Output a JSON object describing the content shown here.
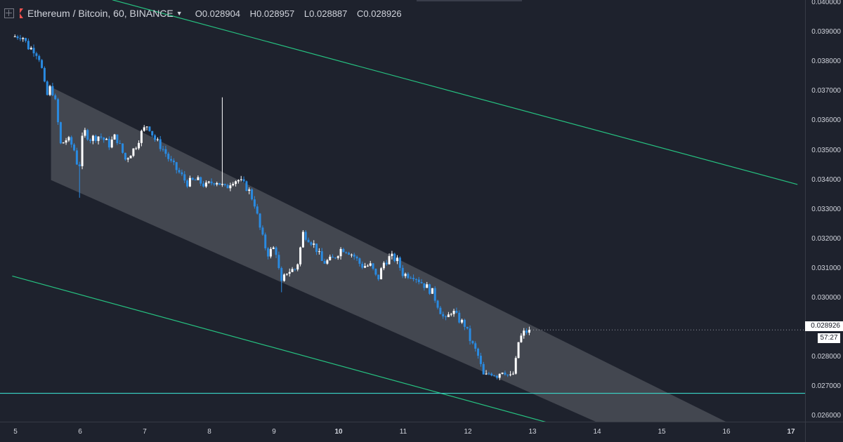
{
  "symbol": {
    "title": "Ethereum / Bitcoin, 60, BINANCE",
    "ohlc": [
      {
        "key": "O",
        "value": "0.028904"
      },
      {
        "key": "H",
        "value": "0.028957"
      },
      {
        "key": "L",
        "value": "0.028887"
      },
      {
        "key": "C",
        "value": "0.028926"
      }
    ]
  },
  "price_axis": {
    "ticks": [
      "0.040000",
      "0.039000",
      "0.038000",
      "0.037000",
      "0.036000",
      "0.035000",
      "0.034000",
      "0.033000",
      "0.032000",
      "0.031000",
      "0.030000",
      "0.028000",
      "0.027000",
      "0.026000"
    ],
    "last_price_label": "0.028926",
    "countdown": "57:27"
  },
  "time_axis": {
    "ticks": [
      {
        "label": "5",
        "day": 5,
        "bold": false
      },
      {
        "label": "6",
        "day": 6,
        "bold": false
      },
      {
        "label": "7",
        "day": 7,
        "bold": false
      },
      {
        "label": "8",
        "day": 8,
        "bold": false
      },
      {
        "label": "9",
        "day": 9,
        "bold": false
      },
      {
        "label": "10",
        "day": 10,
        "bold": true
      },
      {
        "label": "11",
        "day": 11,
        "bold": false
      },
      {
        "label": "12",
        "day": 12,
        "bold": false
      },
      {
        "label": "13",
        "day": 13,
        "bold": false
      },
      {
        "label": "14",
        "day": 14,
        "bold": false
      },
      {
        "label": "15",
        "day": 15,
        "bold": false
      },
      {
        "label": "16",
        "day": 16,
        "bold": false
      },
      {
        "label": "17",
        "day": 17,
        "bold": true
      }
    ]
  },
  "colors": {
    "background": "#1e222d",
    "up_candle": "#ffffff",
    "down_candle": "#2a8ae0",
    "channel_fill": "#4a4d57",
    "trend_line": "#26c281",
    "horizontal_line": "#3ad6c8",
    "accent_flag": "#ef5350"
  },
  "chart_data": {
    "type": "candlestick",
    "timeframe": "60",
    "exchange": "BINANCE",
    "x_range": [
      4.95,
      17.05
    ],
    "ylim": [
      0.02575,
      0.04
    ],
    "path": [
      [
        4.95,
        0.03885
      ],
      [
        5.1,
        0.0389
      ],
      [
        5.2,
        0.0385
      ],
      [
        5.3,
        0.0384
      ],
      [
        5.38,
        0.0381
      ],
      [
        5.42,
        0.0376
      ],
      [
        5.48,
        0.0368
      ],
      [
        5.55,
        0.0372
      ],
      [
        5.62,
        0.0366
      ],
      [
        5.7,
        0.0352
      ],
      [
        5.8,
        0.0354
      ],
      [
        5.9,
        0.0351
      ],
      [
        5.98,
        0.0343
      ],
      [
        6.05,
        0.0357
      ],
      [
        6.15,
        0.0354
      ],
      [
        6.3,
        0.0355
      ],
      [
        6.45,
        0.0352
      ],
      [
        6.55,
        0.0355
      ],
      [
        6.7,
        0.0347
      ],
      [
        6.85,
        0.0351
      ],
      [
        6.95,
        0.0356
      ],
      [
        7.05,
        0.0359
      ],
      [
        7.15,
        0.0354
      ],
      [
        7.3,
        0.035
      ],
      [
        7.4,
        0.0346
      ],
      [
        7.55,
        0.0342
      ],
      [
        7.65,
        0.0339
      ],
      [
        7.8,
        0.034
      ],
      [
        7.95,
        0.0338
      ],
      [
        8.1,
        0.034
      ],
      [
        8.25,
        0.0337
      ],
      [
        8.35,
        0.034
      ],
      [
        8.45,
        0.034
      ],
      [
        8.6,
        0.0337
      ],
      [
        8.7,
        0.0332
      ],
      [
        8.8,
        0.0322
      ],
      [
        8.9,
        0.0315
      ],
      [
        9.0,
        0.0317
      ],
      [
        9.05,
        0.0315
      ],
      [
        9.1,
        0.0304
      ],
      [
        9.2,
        0.0309
      ],
      [
        9.35,
        0.031
      ],
      [
        9.45,
        0.0322
      ],
      [
        9.55,
        0.032
      ],
      [
        9.65,
        0.0317
      ],
      [
        9.75,
        0.0312
      ],
      [
        9.9,
        0.0313
      ],
      [
        10.05,
        0.0317
      ],
      [
        10.15,
        0.0316
      ],
      [
        10.25,
        0.0314
      ],
      [
        10.35,
        0.0311
      ],
      [
        10.5,
        0.0311
      ],
      [
        10.6,
        0.0306
      ],
      [
        10.7,
        0.0312
      ],
      [
        10.8,
        0.0314
      ],
      [
        10.9,
        0.0313
      ],
      [
        11.0,
        0.0308
      ],
      [
        11.15,
        0.0308
      ],
      [
        11.3,
        0.0305
      ],
      [
        11.45,
        0.0302
      ],
      [
        11.55,
        0.0297
      ],
      [
        11.65,
        0.0292
      ],
      [
        11.75,
        0.0296
      ],
      [
        11.85,
        0.0293
      ],
      [
        11.95,
        0.0291
      ],
      [
        12.05,
        0.0285
      ],
      [
        12.15,
        0.0281
      ],
      [
        12.25,
        0.0273
      ],
      [
        12.35,
        0.0275
      ],
      [
        12.45,
        0.0274
      ],
      [
        12.55,
        0.0276
      ],
      [
        12.65,
        0.0273
      ],
      [
        12.72,
        0.0275
      ],
      [
        12.78,
        0.0285
      ],
      [
        12.85,
        0.0288
      ],
      [
        12.95,
        0.028926
      ]
    ],
    "drawings": {
      "channel": {
        "upper": [
          [
            5.55,
            0.03715
          ],
          [
            11.9,
            0.0295
          ],
          [
            16.1,
            0.0257
          ]
        ],
        "lower": [
          [
            5.55,
            0.034
          ],
          [
            10.9,
            0.0297
          ],
          [
            14.1,
            0.0257
          ]
        ]
      },
      "trend_line_upper": [
        [
          6.5,
          0.0401
        ],
        [
          17.1,
          0.03385
        ]
      ],
      "trend_line_lower": [
        [
          4.95,
          0.03075
        ],
        [
          13.3,
          0.02575
        ]
      ],
      "horizontal_line": 0.02678
    },
    "last_price": 0.028926
  }
}
